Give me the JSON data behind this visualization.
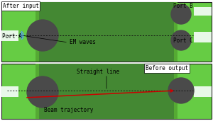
{
  "fig_width": 3.0,
  "fig_height": 1.71,
  "dpi": 100,
  "bg_color": "#ffffff",
  "green_bright": "#66cc44",
  "green_mid": "#55aa33",
  "green_dark": "#448833",
  "gray_lens": "#4a4a4a",
  "white_port": "#e8f8e8",
  "dotted_color": "#111111",
  "red_color": "#cc0000",
  "em_wave_color": "#5599ff",
  "labels": {
    "after_input": "After input",
    "port_a": "Port A",
    "port_b": "Port B",
    "port_c": "Port C",
    "em_waves": "EM waves",
    "before_output": "Before output",
    "straight_line": "Straight line",
    "beam_traj": "Beam trajectory"
  }
}
